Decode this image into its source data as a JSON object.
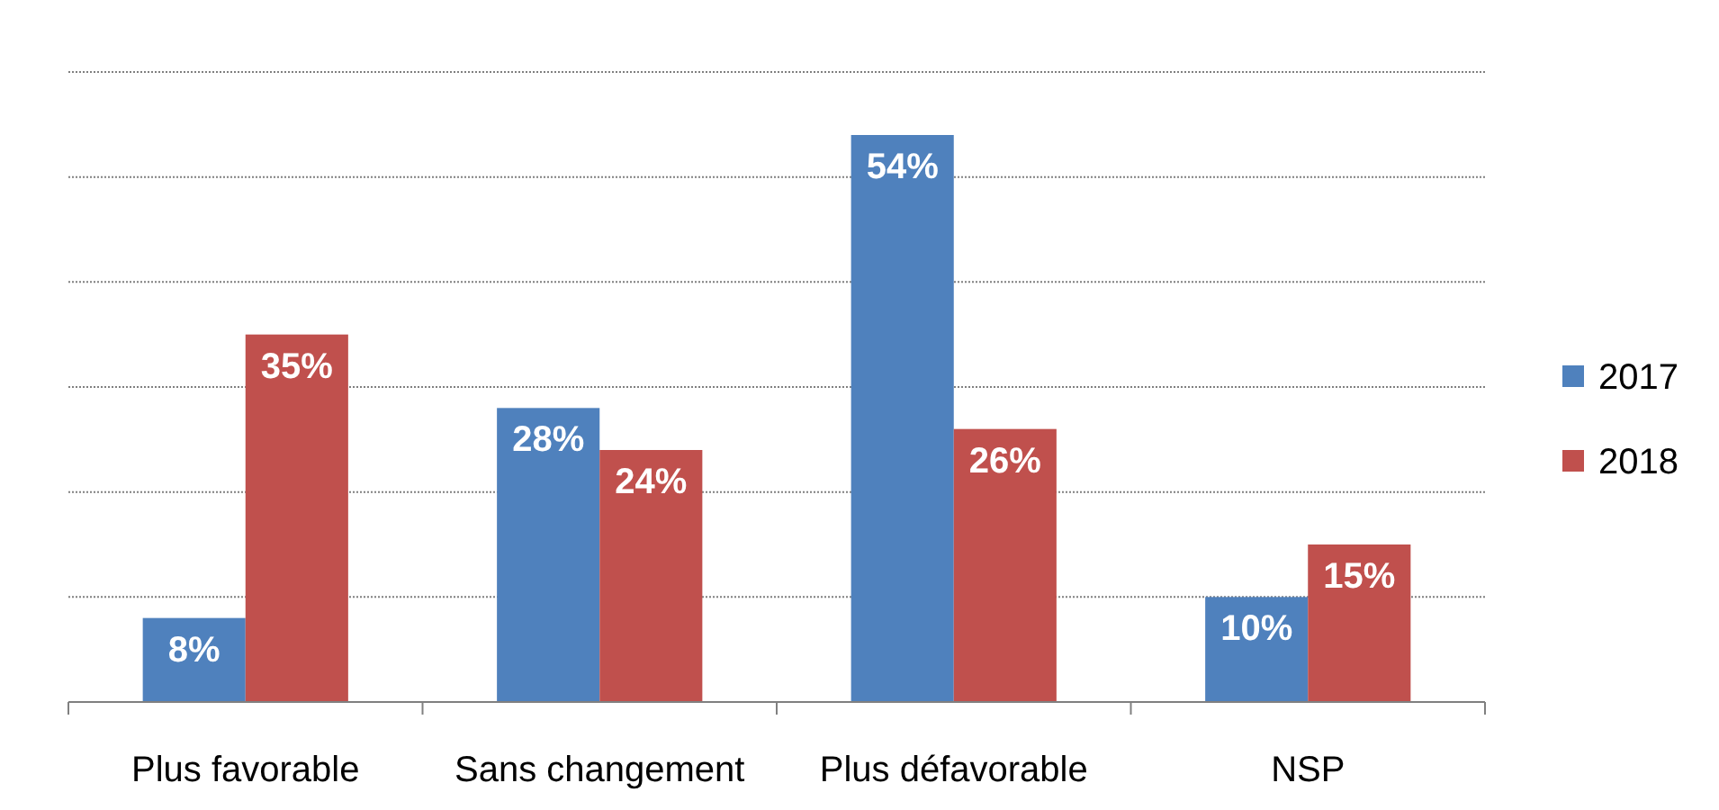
{
  "chart_data": {
    "type": "bar",
    "categories": [
      "Plus favorable",
      "Sans changement",
      "Plus défavorable",
      "NSP"
    ],
    "series": [
      {
        "name": "2017",
        "color": "#4f81bd",
        "values": [
          8,
          28,
          54,
          10
        ],
        "value_labels": [
          "8%",
          "28%",
          "54%",
          "10%"
        ]
      },
      {
        "name": "2018",
        "color": "#c0504d",
        "values": [
          35,
          24,
          26,
          15
        ],
        "value_labels": [
          "35%",
          "24%",
          "26%",
          "15%"
        ]
      }
    ],
    "ylim": [
      0,
      60
    ],
    "yticks": [
      {
        "value": 0,
        "label": null
      },
      {
        "value": 10,
        "label": null
      },
      {
        "value": 20,
        "label": null
      },
      {
        "value": 30,
        "label": null
      },
      {
        "value": 40,
        "label": null
      },
      {
        "value": 50,
        "label": null
      },
      {
        "value": 60,
        "label": null
      }
    ],
    "tick_labels": "x",
    "grid": "y",
    "legend": "right"
  }
}
